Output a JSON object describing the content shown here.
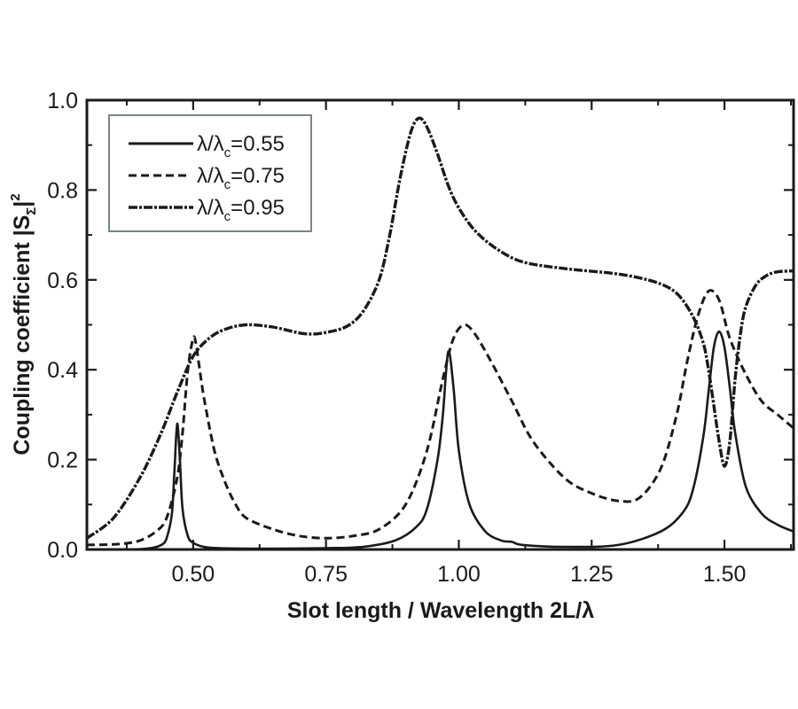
{
  "chart_data": {
    "type": "line",
    "title": "",
    "xlabel": "Slot length / Wavelength 2L/λ",
    "ylabel": "Coupling coefficient |S_Σ|²",
    "ylabel_parts": {
      "main": "Coupling coefficient |S",
      "sub": "Σ",
      "end": "|",
      "sup": "2"
    },
    "xlim": [
      0.3,
      1.63
    ],
    "ylim": [
      0.0,
      1.0
    ],
    "xticks": [
      0.5,
      0.75,
      1.0,
      1.25,
      1.5
    ],
    "xtick_labels": [
      "0.50",
      "0.75",
      "1.00",
      "1.25",
      "1.50"
    ],
    "xminor_ticks": [
      0.375,
      0.625,
      0.875,
      1.125,
      1.375,
      1.625
    ],
    "yticks": [
      0.0,
      0.2,
      0.4,
      0.6,
      0.8,
      1.0
    ],
    "ytick_labels": [
      "0.0",
      "0.2",
      "0.4",
      "0.6",
      "0.8",
      "1.0"
    ],
    "yminor_ticks": [
      0.1,
      0.3,
      0.5,
      0.7,
      0.9
    ],
    "grid": false,
    "legend_position": "upper left",
    "series": [
      {
        "name": "λ/λc=0.55",
        "legend": {
          "pre": "λ/λ",
          "sub": "c",
          "post": "=0.55"
        },
        "style": "solid",
        "x": [
          0.3,
          0.38,
          0.42,
          0.44,
          0.45,
          0.46,
          0.465,
          0.47,
          0.475,
          0.48,
          0.49,
          0.5,
          0.52,
          0.55,
          0.65,
          0.75,
          0.82,
          0.88,
          0.92,
          0.94,
          0.96,
          0.97,
          0.98,
          0.99,
          1.0,
          1.02,
          1.05,
          1.08,
          1.1,
          1.12,
          1.2,
          1.3,
          1.38,
          1.42,
          1.44,
          1.46,
          1.47,
          1.48,
          1.49,
          1.5,
          1.51,
          1.52,
          1.54,
          1.57,
          1.6,
          1.63
        ],
        "values": [
          0.0,
          0.0,
          0.003,
          0.01,
          0.025,
          0.08,
          0.18,
          0.28,
          0.2,
          0.09,
          0.03,
          0.015,
          0.006,
          0.003,
          0.002,
          0.003,
          0.006,
          0.02,
          0.05,
          0.09,
          0.2,
          0.3,
          0.44,
          0.36,
          0.22,
          0.1,
          0.04,
          0.02,
          0.017,
          0.01,
          0.006,
          0.01,
          0.04,
          0.08,
          0.13,
          0.25,
          0.35,
          0.45,
          0.485,
          0.45,
          0.36,
          0.26,
          0.14,
          0.08,
          0.055,
          0.04
        ]
      },
      {
        "name": "λ/λc=0.75",
        "legend": {
          "pre": "λ/λ",
          "sub": "c",
          "post": "=0.75"
        },
        "style": "dashed",
        "x": [
          0.3,
          0.36,
          0.4,
          0.43,
          0.45,
          0.47,
          0.48,
          0.49,
          0.5,
          0.505,
          0.51,
          0.52,
          0.54,
          0.56,
          0.58,
          0.6,
          0.65,
          0.7,
          0.75,
          0.8,
          0.85,
          0.9,
          0.94,
          0.97,
          0.99,
          1.01,
          1.03,
          1.06,
          1.1,
          1.14,
          1.2,
          1.25,
          1.3,
          1.34,
          1.38,
          1.41,
          1.43,
          1.45,
          1.47,
          1.49,
          1.51,
          1.54,
          1.57,
          1.6,
          1.63
        ],
        "values": [
          0.01,
          0.012,
          0.02,
          0.04,
          0.07,
          0.16,
          0.26,
          0.4,
          0.47,
          0.46,
          0.42,
          0.34,
          0.22,
          0.15,
          0.1,
          0.07,
          0.045,
          0.03,
          0.025,
          0.03,
          0.045,
          0.1,
          0.22,
          0.38,
          0.47,
          0.5,
          0.48,
          0.42,
          0.33,
          0.24,
          0.158,
          0.125,
          0.108,
          0.115,
          0.18,
          0.3,
          0.42,
          0.52,
          0.575,
          0.555,
          0.47,
          0.39,
          0.33,
          0.3,
          0.27
        ]
      },
      {
        "name": "λ/λc=0.95",
        "legend": {
          "pre": "λ/λ",
          "sub": "c",
          "post": "=0.95"
        },
        "style": "dashdot",
        "x": [
          0.3,
          0.35,
          0.4,
          0.44,
          0.47,
          0.5,
          0.53,
          0.56,
          0.6,
          0.65,
          0.71,
          0.75,
          0.79,
          0.82,
          0.85,
          0.87,
          0.89,
          0.91,
          0.925,
          0.94,
          0.96,
          0.98,
          1.0,
          1.03,
          1.07,
          1.12,
          1.2,
          1.3,
          1.37,
          1.41,
          1.44,
          1.46,
          1.47,
          1.48,
          1.49,
          1.5,
          1.51,
          1.52,
          1.53,
          1.54,
          1.56,
          1.58,
          1.6,
          1.63
        ],
        "values": [
          0.025,
          0.07,
          0.16,
          0.26,
          0.35,
          0.43,
          0.47,
          0.49,
          0.5,
          0.495,
          0.48,
          0.483,
          0.497,
          0.53,
          0.6,
          0.7,
          0.83,
          0.93,
          0.96,
          0.94,
          0.88,
          0.81,
          0.76,
          0.71,
          0.67,
          0.64,
          0.625,
          0.613,
          0.595,
          0.57,
          0.52,
          0.46,
          0.4,
          0.32,
          0.24,
          0.185,
          0.24,
          0.38,
          0.48,
          0.54,
          0.59,
          0.61,
          0.618,
          0.62
        ]
      }
    ]
  },
  "colors": {
    "line": "#1a1a1a",
    "axis": "#1a1a1a",
    "legend_border": "#7a8585",
    "background": "#ffffff"
  }
}
